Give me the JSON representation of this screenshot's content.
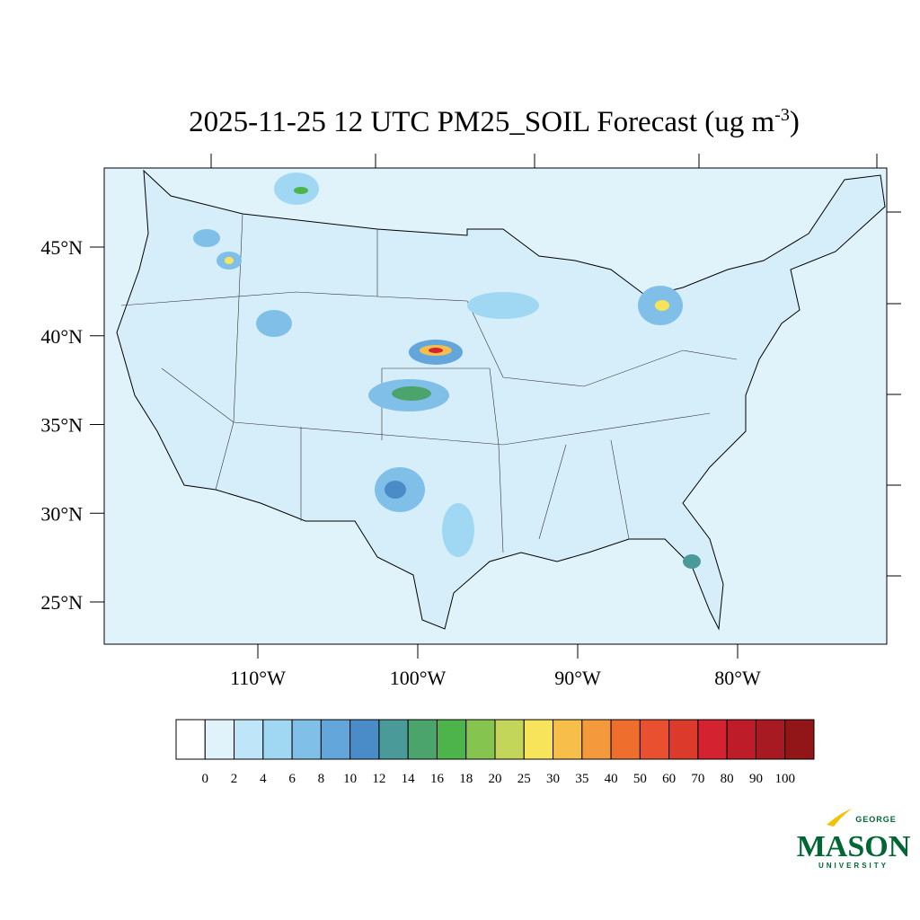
{
  "map": {
    "title": "2025-11-25 12 UTC PM25_SOIL Forecast (ug m",
    "title_superscript": "-3",
    "title_end": ")",
    "lat_ticks": [
      {
        "value": 45,
        "label": "45°N"
      },
      {
        "value": 40,
        "label": "40°N"
      },
      {
        "value": 35,
        "label": "35°N"
      },
      {
        "value": 30,
        "label": "30°N"
      },
      {
        "value": 25,
        "label": "25°N"
      }
    ],
    "lon_ticks": [
      {
        "value": -110,
        "label": "110°W"
      },
      {
        "value": -100,
        "label": "100°W"
      },
      {
        "value": -90,
        "label": "90°W"
      },
      {
        "value": -80,
        "label": "80°W"
      }
    ],
    "colorbar": {
      "levels": [
        0,
        2,
        4,
        6,
        8,
        10,
        12,
        14,
        16,
        18,
        20,
        25,
        30,
        35,
        40,
        50,
        60,
        70,
        80,
        90,
        100
      ],
      "colors": [
        "#ffffff",
        "#e0f3fb",
        "#bfe6f8",
        "#a0d8f3",
        "#80c0e8",
        "#62a6dc",
        "#4a8cc8",
        "#4a9a9a",
        "#4aa46c",
        "#4cb44a",
        "#86c450",
        "#c4d65a",
        "#f8e45a",
        "#f8be4a",
        "#f49a3c",
        "#ee6e2e",
        "#e85030",
        "#dc3a2a",
        "#d42230",
        "#be1c28",
        "#a81a22",
        "#921618"
      ]
    }
  },
  "logo": {
    "top": "GEORGE",
    "main": "MASON",
    "bottom": "UNIVERSITY"
  }
}
